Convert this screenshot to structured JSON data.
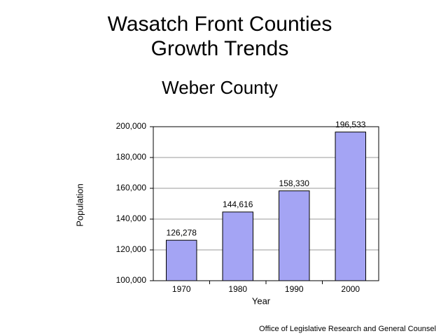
{
  "chart_data": {
    "type": "bar",
    "title": [
      "Wasatch Front Counties",
      "Growth Trends"
    ],
    "subtitle": "Weber County",
    "x_label": "Year",
    "y_label": "Population",
    "footer": "Office of Legislative Research and General Counsel",
    "categories": [
      "1970",
      "1980",
      "1990",
      "2000"
    ],
    "values": [
      126278,
      144616,
      158330,
      196533
    ],
    "value_labels": [
      "126,278",
      "144,616",
      "158,330",
      "196,533"
    ],
    "color": "#a4a4f4",
    "ylim": [
      100000,
      200000
    ],
    "yticks": [
      {
        "value": 100000,
        "label": "100,000"
      },
      {
        "value": 120000,
        "label": "120,000"
      },
      {
        "value": 140000,
        "label": "140,000"
      },
      {
        "value": 160000,
        "label": "160,000"
      },
      {
        "value": 180000,
        "label": "180,000"
      },
      {
        "value": 200000,
        "label": "200,000"
      }
    ],
    "grid": true
  }
}
